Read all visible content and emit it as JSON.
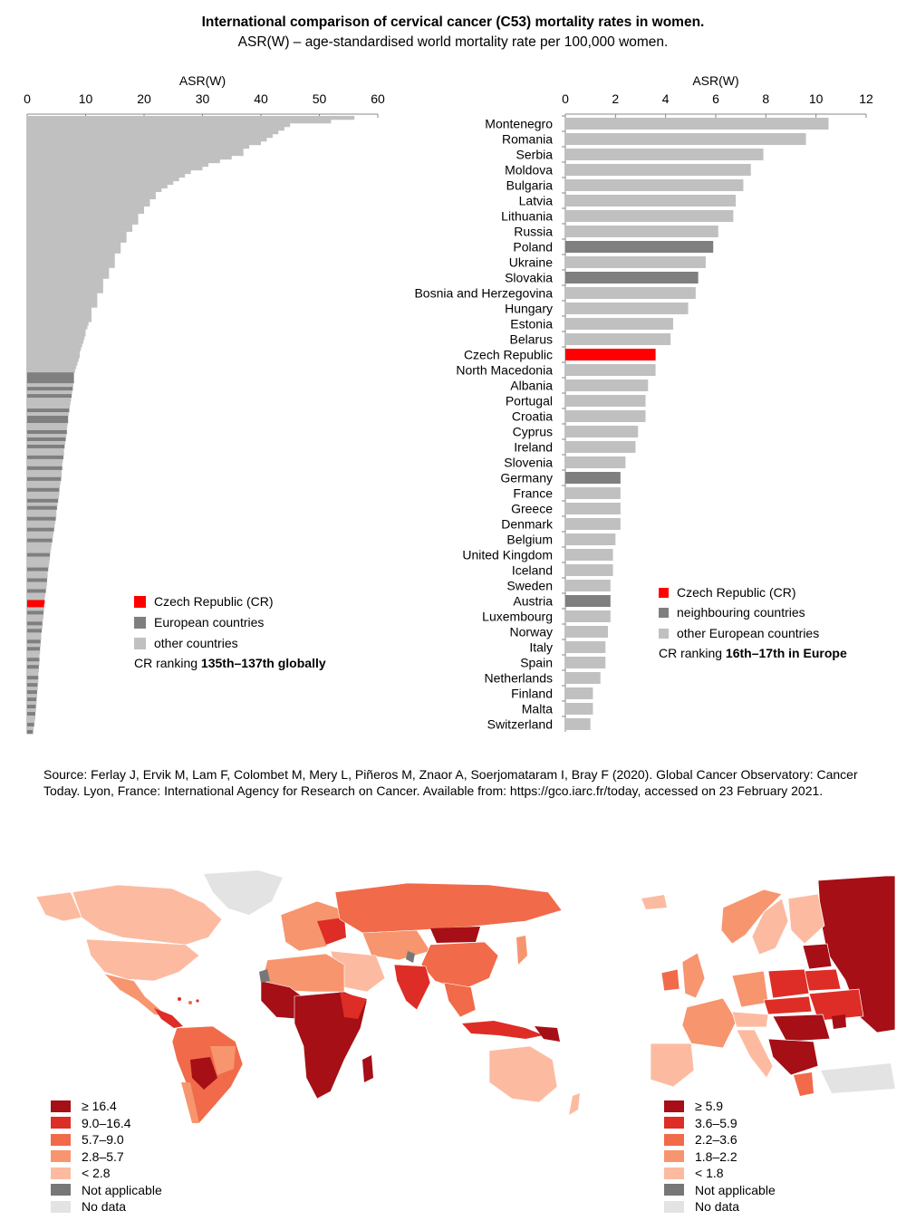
{
  "title": "International comparison of cervical cancer (C53) mortality rates in women.",
  "subtitle": "ASR(W) – age-standardised world mortality rate per 100,000 women.",
  "colors": {
    "cr": "#ff0000",
    "europe": "#7f7f7f",
    "other": "#c0c0c0"
  },
  "chart_data": [
    {
      "type": "bar",
      "orientation": "horizontal",
      "xlabel": "ASR(W)",
      "xlim": [
        0,
        60
      ],
      "ticks": [
        0,
        10,
        20,
        30,
        40,
        50,
        60
      ],
      "categories_labeled": false,
      "values": [
        56,
        52,
        45,
        44,
        43,
        42,
        41,
        40,
        38,
        37,
        37,
        35,
        33,
        31,
        30,
        28,
        27,
        26,
        25,
        24,
        23,
        22,
        22,
        21,
        21,
        20,
        20,
        19,
        19,
        19,
        18,
        18,
        17,
        17,
        17,
        16,
        16,
        16,
        15,
        15,
        15,
        15,
        14,
        14,
        14,
        13,
        13,
        13,
        13,
        12,
        12,
        12,
        12,
        11,
        11,
        11,
        11,
        10.5,
        10.3,
        10,
        10,
        9.8,
        9.6,
        9.4,
        9.2,
        9,
        9,
        8.8,
        8.6,
        8.4,
        8.2,
        8,
        8,
        8,
        7.9,
        7.8,
        7.7,
        7.6,
        7.5,
        7.4,
        7.3,
        7.2,
        7.1,
        7,
        7,
        6.9,
        6.8,
        6.8,
        6.7,
        6.6,
        6.5,
        6.4,
        6.3,
        6.3,
        6.2,
        6.1,
        6,
        6,
        5.9,
        5.9,
        5.8,
        5.7,
        5.6,
        5.5,
        5.5,
        5.4,
        5.3,
        5.2,
        5.1,
        5,
        5,
        4.9,
        4.8,
        4.7,
        4.6,
        4.5,
        4.4,
        4.3,
        4.2,
        4.1,
        4,
        3.9,
        3.9,
        3.8,
        3.7,
        3.6,
        3.5,
        3.5,
        3.4,
        3.4,
        3.3,
        3.2,
        3.1,
        3,
        3,
        2.9,
        2.9,
        2.8,
        2.8,
        2.7,
        2.6,
        2.6,
        2.5,
        2.4,
        2.4,
        2.3,
        2.3,
        2.2,
        2.2,
        2.1,
        2.1,
        2.1,
        2,
        2,
        1.9,
        1.9,
        1.9,
        1.8,
        1.8,
        1.7,
        1.7,
        1.6,
        1.6,
        1.5,
        1.5,
        1.4,
        1.4,
        1.3,
        1.2,
        1.1,
        1
      ],
      "groups": {
        "cr_index": [
          134,
          135
        ],
        "europe_indices": [
          71,
          72,
          73,
          75,
          77,
          81,
          83,
          84,
          87,
          89,
          91,
          94,
          97,
          100,
          103,
          106,
          108,
          111,
          114,
          117,
          121,
          125,
          128,
          131,
          137,
          140,
          142,
          145,
          147,
          150,
          152,
          155,
          157,
          159,
          161,
          163,
          165,
          168,
          170,
          172
        ]
      },
      "legend": [
        {
          "label": "Czech Republic (CR)",
          "color": "#ff0000"
        },
        {
          "label": "European countries",
          "color": "#7f7f7f"
        },
        {
          "label": "other countries",
          "color": "#c0c0c0"
        }
      ],
      "ranking_prefix": "CR ranking ",
      "ranking_value": "135th–137th globally"
    },
    {
      "type": "bar",
      "orientation": "horizontal",
      "xlabel": "ASR(W)",
      "xlim": [
        0,
        12
      ],
      "ticks": [
        0,
        2,
        4,
        6,
        8,
        10,
        12
      ],
      "categories": [
        "Montenegro",
        "Romania",
        "Serbia",
        "Moldova",
        "Bulgaria",
        "Latvia",
        "Lithuania",
        "Russia",
        "Poland",
        "Ukraine",
        "Slovakia",
        "Bosnia and Herzegovina",
        "Hungary",
        "Estonia",
        "Belarus",
        "Czech Republic",
        "North Macedonia",
        "Albania",
        "Portugal",
        "Croatia",
        "Cyprus",
        "Ireland",
        "Slovenia",
        "Germany",
        "France",
        "Greece",
        "Denmark",
        "Belgium",
        "United Kingdom",
        "Iceland",
        "Sweden",
        "Austria",
        "Luxembourg",
        "Norway",
        "Italy",
        "Spain",
        "Netherlands",
        "Finland",
        "Malta",
        "Switzerland"
      ],
      "values": [
        10.5,
        9.6,
        7.9,
        7.4,
        7.1,
        6.8,
        6.7,
        6.1,
        5.9,
        5.6,
        5.3,
        5.2,
        4.9,
        4.3,
        4.2,
        3.6,
        3.6,
        3.3,
        3.2,
        3.2,
        2.9,
        2.8,
        2.4,
        2.2,
        2.2,
        2.2,
        2.2,
        2.0,
        1.9,
        1.9,
        1.8,
        1.8,
        1.8,
        1.7,
        1.6,
        1.6,
        1.4,
        1.1,
        1.1,
        1.0
      ],
      "group": [
        "other",
        "other",
        "other",
        "other",
        "other",
        "other",
        "other",
        "other",
        "neighbour",
        "other",
        "neighbour",
        "other",
        "other",
        "other",
        "other",
        "cr",
        "other",
        "other",
        "other",
        "other",
        "other",
        "other",
        "other",
        "neighbour",
        "other",
        "other",
        "other",
        "other",
        "other",
        "other",
        "other",
        "neighbour",
        "other",
        "other",
        "other",
        "other",
        "other",
        "other",
        "other",
        "other"
      ],
      "legend": [
        {
          "label": "Czech Republic (CR)",
          "color": "#ff0000"
        },
        {
          "label": "neighbouring countries",
          "color": "#7f7f7f"
        },
        {
          "label": "other European countries",
          "color": "#c0c0c0"
        }
      ],
      "ranking_prefix": "CR ranking ",
      "ranking_value": "16th–17th in Europe"
    }
  ],
  "source": "Source: Ferlay J, Ervik M, Lam F, Colombet M, Mery L, Piñeros M, Znaor A, Soerjomataram I, Bray F (2020). Global Cancer Observatory: Cancer Today. Lyon, France: International Agency for Research on Cancer. Available from: https://gco.iarc.fr/today, accessed on 23 February 2021.",
  "world_map_legend": [
    {
      "label": "≥ 16.4",
      "color": "#a50f15"
    },
    {
      "label": "9.0–16.4",
      "color": "#de2d26"
    },
    {
      "label": "5.7–9.0",
      "color": "#f16a4a"
    },
    {
      "label": "2.8–5.7",
      "color": "#f7956f"
    },
    {
      "label": "< 2.8",
      "color": "#fcbba1"
    },
    {
      "label": "Not applicable",
      "color": "#777777"
    },
    {
      "label": "No data",
      "color": "#e3e3e3"
    }
  ],
  "europe_map_legend": [
    {
      "label": "≥ 5.9",
      "color": "#a50f15"
    },
    {
      "label": "3.6–5.9",
      "color": "#de2d26"
    },
    {
      "label": "2.2–3.6",
      "color": "#f16a4a"
    },
    {
      "label": "1.8–2.2",
      "color": "#f7956f"
    },
    {
      "label": "< 1.8",
      "color": "#fcbba1"
    },
    {
      "label": "Not applicable",
      "color": "#777777"
    },
    {
      "label": "No data",
      "color": "#e3e3e3"
    }
  ]
}
